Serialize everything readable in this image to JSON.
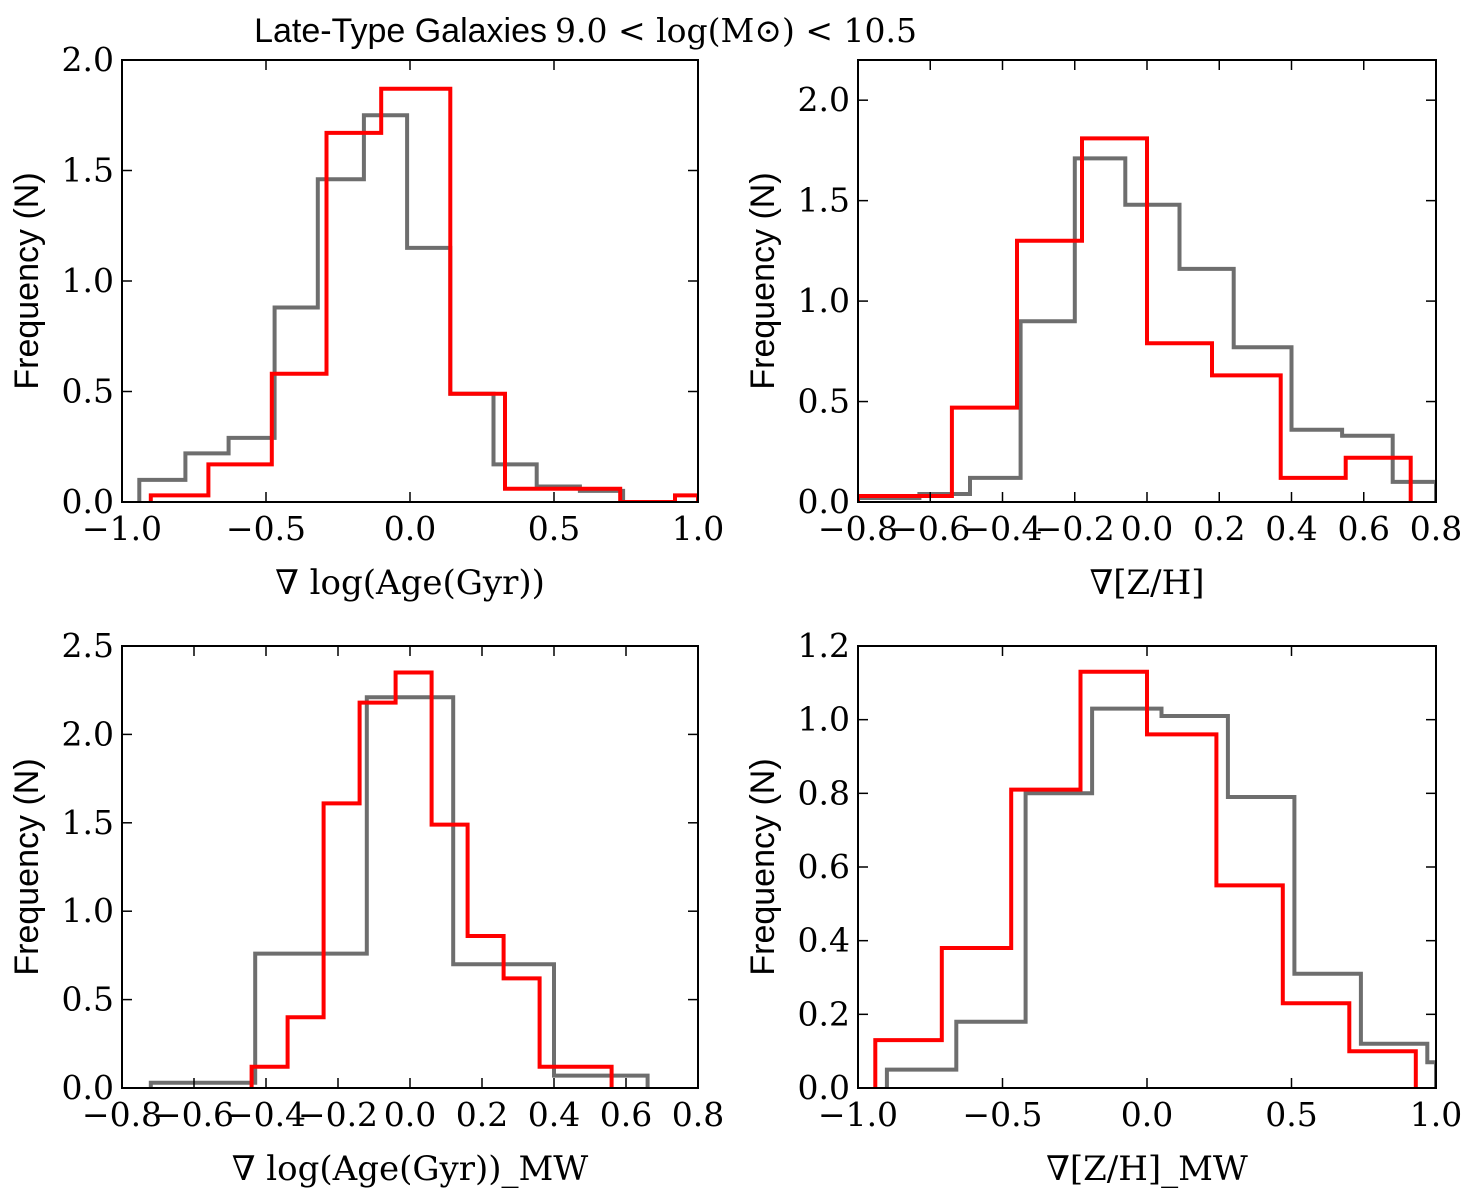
{
  "title": {
    "text": "Late-Type Galaxies",
    "math": "9.0 < log(M⊙) < 10.5"
  },
  "colors": {
    "red": "#ff0000",
    "gray": "#6e6e6e"
  },
  "chart_data": [
    {
      "type": "histogram",
      "xlabel": "∇ log(Age(Gyr))",
      "ylabel": "Frequency (N)",
      "xlim": [
        -1.0,
        1.0
      ],
      "ylim": [
        0.0,
        2.0
      ],
      "xticks": [
        -1.0,
        -0.5,
        0.0,
        0.5,
        1.0
      ],
      "xtick_labels": [
        "−1.0",
        "−0.5",
        "0.0",
        "0.5",
        "1.0"
      ],
      "yticks": [
        0.0,
        0.5,
        1.0,
        1.5,
        2.0
      ],
      "ytick_labels": [
        "0.0",
        "0.5",
        "1.0",
        "1.5",
        "2.0"
      ],
      "series": [
        {
          "name": "red",
          "color": "#ff0000",
          "edges": [
            -0.9,
            -0.7,
            -0.48,
            -0.29,
            -0.1,
            0.14,
            0.33,
            0.52,
            0.73,
            0.92,
            1.0
          ],
          "values": [
            0.03,
            0.17,
            0.58,
            1.67,
            1.87,
            0.49,
            0.06,
            0.06,
            0.0,
            0.03
          ]
        },
        {
          "name": "gray",
          "color": "#6e6e6e",
          "edges": [
            -0.94,
            -0.78,
            -0.63,
            -0.47,
            -0.32,
            -0.16,
            -0.01,
            0.14,
            0.29,
            0.44,
            0.59,
            0.74
          ],
          "values": [
            0.1,
            0.22,
            0.29,
            0.88,
            1.46,
            1.75,
            1.15,
            0.49,
            0.17,
            0.07,
            0.05
          ]
        }
      ]
    },
    {
      "type": "histogram",
      "xlabel": "∇[Z/H]",
      "ylabel": "Frequency (N)",
      "xlim": [
        -0.8,
        0.8
      ],
      "ylim": [
        0.0,
        2.2
      ],
      "xticks": [
        -0.8,
        -0.6,
        -0.4,
        -0.2,
        0.0,
        0.2,
        0.4,
        0.6,
        0.8
      ],
      "xtick_labels": [
        "−0.8",
        "−0.6",
        "−0.4",
        "−0.2",
        "0.0",
        "0.2",
        "0.4",
        "0.6",
        "0.8"
      ],
      "yticks": [
        0.0,
        0.5,
        1.0,
        1.5,
        2.0
      ],
      "ytick_labels": [
        "0.0",
        "0.5",
        "1.0",
        "1.5",
        "2.0"
      ],
      "series": [
        {
          "name": "red",
          "color": "#ff0000",
          "edges": [
            -0.8,
            -0.54,
            -0.36,
            -0.18,
            0.0,
            0.18,
            0.37,
            0.55,
            0.73
          ],
          "values": [
            0.03,
            0.47,
            1.3,
            1.81,
            0.79,
            0.63,
            0.12,
            0.22
          ]
        },
        {
          "name": "gray",
          "color": "#6e6e6e",
          "edges": [
            -0.8,
            -0.63,
            -0.49,
            -0.35,
            -0.2,
            -0.06,
            0.09,
            0.24,
            0.4,
            0.54,
            0.68,
            0.8
          ],
          "values": [
            0.02,
            0.04,
            0.12,
            0.9,
            1.71,
            1.48,
            1.16,
            0.77,
            0.36,
            0.33,
            0.1
          ]
        }
      ]
    },
    {
      "type": "histogram",
      "xlabel": "∇ log(Age(Gyr))_MW",
      "ylabel": "Frequency (N)",
      "xlim": [
        -0.8,
        0.8
      ],
      "ylim": [
        0.0,
        2.5
      ],
      "xticks": [
        -0.8,
        -0.6,
        -0.4,
        -0.2,
        0.0,
        0.2,
        0.4,
        0.6,
        0.8
      ],
      "xtick_labels": [
        "−0.8",
        "−0.6",
        "−0.4",
        "−0.2",
        "0.0",
        "0.2",
        "0.4",
        "0.6",
        "0.8"
      ],
      "yticks": [
        0.0,
        0.5,
        1.0,
        1.5,
        2.0,
        2.5
      ],
      "ytick_labels": [
        "0.0",
        "0.5",
        "1.0",
        "1.5",
        "2.0",
        "2.5"
      ],
      "series": [
        {
          "name": "red",
          "color": "#ff0000",
          "edges": [
            -0.44,
            -0.34,
            -0.24,
            -0.14,
            -0.04,
            0.06,
            0.16,
            0.26,
            0.36,
            0.46,
            0.56
          ],
          "values": [
            0.12,
            0.4,
            1.61,
            2.18,
            2.35,
            1.49,
            0.86,
            0.62,
            0.12,
            0.12
          ]
        },
        {
          "name": "gray",
          "color": "#6e6e6e",
          "edges": [
            -0.72,
            -0.43,
            -0.27,
            -0.12,
            0.12,
            0.27,
            0.4,
            0.59,
            0.66
          ],
          "values": [
            0.03,
            0.76,
            0.76,
            2.21,
            0.7,
            0.7,
            0.07,
            0.07
          ]
        }
      ]
    },
    {
      "type": "histogram",
      "xlabel": "∇[Z/H]_MW",
      "ylabel": "Frequency (N)",
      "xlim": [
        -1.0,
        1.0
      ],
      "ylim": [
        0.0,
        1.2
      ],
      "xticks": [
        -1.0,
        -0.5,
        0.0,
        0.5,
        1.0
      ],
      "xtick_labels": [
        "−1.0",
        "−0.5",
        "0.0",
        "0.5",
        "1.0"
      ],
      "yticks": [
        0.0,
        0.2,
        0.4,
        0.6,
        0.8,
        1.0,
        1.2
      ],
      "ytick_labels": [
        "0.0",
        "0.2",
        "0.4",
        "0.6",
        "0.8",
        "1.0",
        "1.2"
      ],
      "series": [
        {
          "name": "red",
          "color": "#ff0000",
          "edges": [
            -0.94,
            -0.71,
            -0.47,
            -0.23,
            0.0,
            0.24,
            0.47,
            0.7,
            0.93
          ],
          "values": [
            0.13,
            0.38,
            0.81,
            1.13,
            0.96,
            0.55,
            0.23,
            0.1
          ]
        },
        {
          "name": "gray",
          "color": "#6e6e6e",
          "edges": [
            -0.9,
            -0.66,
            -0.42,
            -0.19,
            0.05,
            0.28,
            0.51,
            0.74,
            0.97,
            1.0
          ],
          "values": [
            0.05,
            0.18,
            0.8,
            1.03,
            1.01,
            0.79,
            0.31,
            0.12,
            0.07
          ]
        }
      ]
    }
  ]
}
